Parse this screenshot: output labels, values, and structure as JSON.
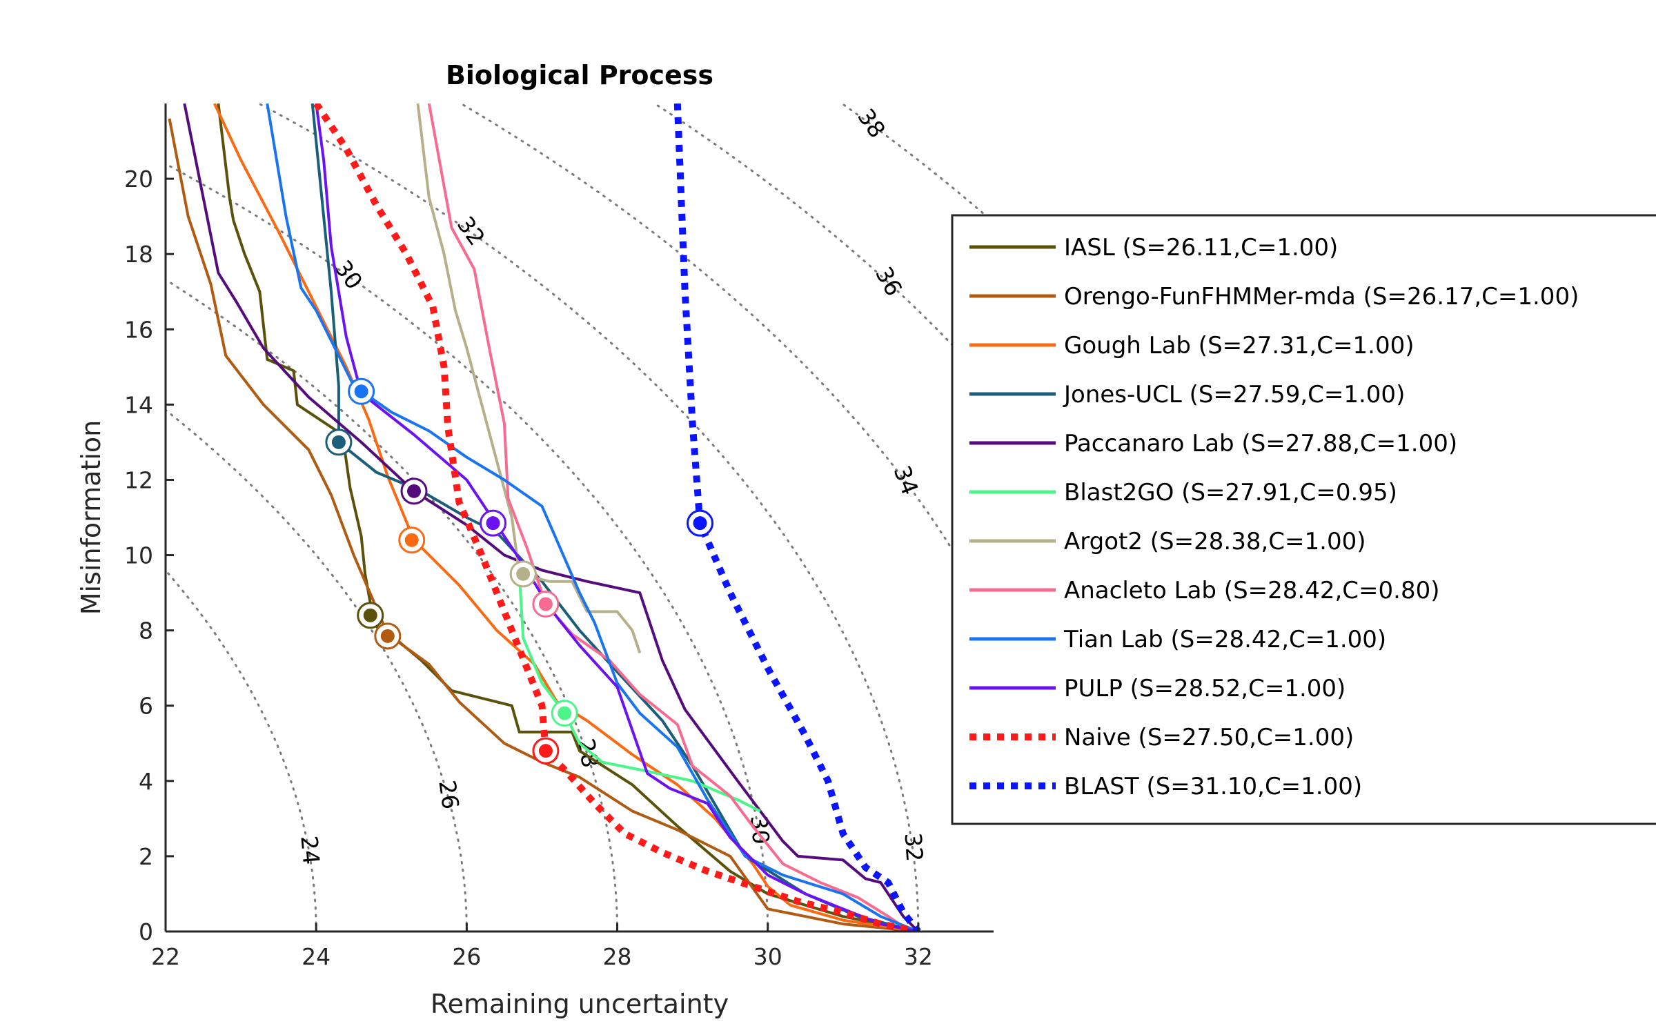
{
  "chart_data": {
    "type": "line",
    "title": "Biological Process",
    "xlabel": "Remaining uncertainty",
    "ylabel": "Misinformation",
    "xlim": [
      22,
      33
    ],
    "ylim": [
      0,
      22
    ],
    "xticks": [
      "22",
      "24",
      "26",
      "28",
      "30",
      "32"
    ],
    "yticks": [
      "0",
      "2",
      "4",
      "6",
      "8",
      "10",
      "12",
      "14",
      "16",
      "18",
      "20"
    ],
    "contours": [
      {
        "level": "24",
        "r": 24,
        "label": "24"
      },
      {
        "level": "26",
        "r": 26,
        "label": "26"
      },
      {
        "level": "28",
        "r": 28,
        "label": "28"
      },
      {
        "level": "30",
        "r": 30,
        "label": "30"
      },
      {
        "level": "32",
        "r": 32,
        "label": "32"
      },
      {
        "level": "34",
        "r": 34,
        "label": "34"
      },
      {
        "level": "36",
        "r": 36,
        "label": "36"
      },
      {
        "level": "38",
        "r": 38,
        "label": "38"
      }
    ],
    "grid": false,
    "legend_position": "right",
    "series": [
      {
        "name": "IASL (S=26.11,C=1.00)",
        "color": "#5a520a",
        "style": "solid",
        "x": [
          22.7,
          22.85,
          22.9,
          23.05,
          23.25,
          23.35,
          23.7,
          23.75,
          24.35,
          24.45,
          24.6,
          24.65,
          24.75,
          24.85,
          25.1,
          25.4,
          25.8,
          26.0,
          26.6,
          26.7,
          26.9,
          27.4,
          27.5,
          28.2,
          28.8,
          29.5,
          30.0,
          31.0,
          32.0
        ],
        "y": [
          22.0,
          19.5,
          18.9,
          18.0,
          17.0,
          15.2,
          14.9,
          14.0,
          13.2,
          11.8,
          10.5,
          9.5,
          8.4,
          7.9,
          7.7,
          7.2,
          6.4,
          6.3,
          6.0,
          5.3,
          5.3,
          5.3,
          4.8,
          3.9,
          2.8,
          1.6,
          1.0,
          0.4,
          0.0
        ],
        "marker": [
          24.72,
          8.4
        ]
      },
      {
        "name": "Orengo-FunFHMMer-mda (S=26.17,C=1.00)",
        "color": "#b05a12",
        "style": "solid",
        "x": [
          22.05,
          22.3,
          22.6,
          22.8,
          23.3,
          23.9,
          24.2,
          24.5,
          24.8,
          24.95,
          25.5,
          25.9,
          26.5,
          27.0,
          27.5,
          28.2,
          28.8,
          29.5,
          30.0,
          30.5,
          31.0,
          31.5,
          32.0
        ],
        "y": [
          21.6,
          19.0,
          17.2,
          15.3,
          14.0,
          12.8,
          11.6,
          10.0,
          8.6,
          7.9,
          7.1,
          6.1,
          5.0,
          4.5,
          4.1,
          3.2,
          2.7,
          2.0,
          0.6,
          0.4,
          0.2,
          0.1,
          0.0
        ],
        "marker": [
          24.95,
          7.85
        ]
      },
      {
        "name": "Gough Lab (S=27.31,C=1.00)",
        "color": "#f96a12",
        "style": "solid",
        "x": [
          22.65,
          23.0,
          23.5,
          23.9,
          24.4,
          24.7,
          24.95,
          25.3,
          25.9,
          26.4,
          26.9,
          27.2,
          27.6,
          28.2,
          28.8,
          29.3,
          29.8,
          30.0,
          30.3,
          31.0,
          32.0
        ],
        "y": [
          22.0,
          20.5,
          18.6,
          17.0,
          15.0,
          13.6,
          12.1,
          10.4,
          9.2,
          8.0,
          7.1,
          6.1,
          5.6,
          4.7,
          3.9,
          3.0,
          1.8,
          1.2,
          0.7,
          0.3,
          0.0
        ],
        "marker": [
          25.27,
          10.4
        ]
      },
      {
        "name": "Jones-UCL (S=27.59,C=1.00)",
        "color": "#1a5e7a",
        "style": "solid",
        "x": [
          23.95,
          24.2,
          24.3,
          24.3,
          24.8,
          25.4,
          26.0,
          26.4,
          27.0,
          27.5,
          28.0,
          28.6,
          29.0,
          29.7,
          30.5,
          31.2,
          32.0
        ],
        "y": [
          22.0,
          17.0,
          14.5,
          13.0,
          12.2,
          11.7,
          11.0,
          10.6,
          9.3,
          8.0,
          6.9,
          5.6,
          4.4,
          2.0,
          1.0,
          0.4,
          0.0
        ],
        "marker": [
          24.3,
          13.0
        ]
      },
      {
        "name": "Paccanaro Lab (S=27.88,C=1.00)",
        "color": "#540b7c",
        "style": "solid",
        "x": [
          22.25,
          22.7,
          22.95,
          23.3,
          23.9,
          24.6,
          25.3,
          26.0,
          26.5,
          27.0,
          27.6,
          28.3,
          28.6,
          28.9,
          29.6,
          30.2,
          30.4,
          31.0,
          31.3,
          31.5,
          31.8,
          32.0
        ],
        "y": [
          22.0,
          17.5,
          16.7,
          15.5,
          14.2,
          13.0,
          11.7,
          10.8,
          10.0,
          9.6,
          9.3,
          9.0,
          7.2,
          5.9,
          4.0,
          2.4,
          2.0,
          1.9,
          1.4,
          1.3,
          0.4,
          0.0
        ],
        "marker": [
          25.3,
          11.7
        ]
      },
      {
        "name": "Blast2GO (S=27.91,C=0.95)",
        "color": "#4cf58a",
        "style": "solid",
        "x": [
          26.7,
          26.75,
          27.0,
          27.3,
          27.5,
          27.8,
          28.3,
          29.0,
          29.6,
          29.9
        ],
        "y": [
          9.5,
          7.8,
          6.6,
          5.8,
          5.0,
          4.5,
          4.3,
          4.0,
          3.5,
          3.2
        ],
        "marker": [
          27.3,
          5.8
        ]
      },
      {
        "name": "Argot2 (S=28.38,C=1.00)",
        "color": "#b5b08a",
        "style": "solid",
        "x": [
          25.35,
          25.5,
          25.7,
          25.85,
          26.0,
          26.2,
          26.4,
          26.6,
          26.7,
          26.9,
          27.1,
          27.4,
          27.6,
          28.0,
          28.2,
          28.3
        ],
        "y": [
          22.0,
          19.5,
          18.0,
          16.5,
          15.5,
          14.0,
          12.5,
          11.0,
          9.5,
          9.4,
          9.3,
          9.3,
          8.5,
          8.5,
          8.0,
          7.4
        ],
        "marker": [
          26.75,
          9.5
        ]
      },
      {
        "name": "Anacleto Lab (S=28.42,C=0.80)",
        "color": "#f76b90",
        "style": "solid",
        "x": [
          25.5,
          25.8,
          26.1,
          26.3,
          26.5,
          26.55,
          26.8,
          27.05,
          27.4,
          27.9,
          28.3,
          28.8,
          29.0,
          29.5,
          29.8,
          30.2,
          30.7,
          31.2,
          31.6,
          31.9
        ],
        "y": [
          22.0,
          18.7,
          17.6,
          15.5,
          13.5,
          11.5,
          10.2,
          8.7,
          7.9,
          7.2,
          6.3,
          5.5,
          4.4,
          3.6,
          2.8,
          1.8,
          1.3,
          0.9,
          0.4,
          0.0
        ],
        "marker": [
          27.05,
          8.7
        ]
      },
      {
        "name": "Tian Lab (S=28.42,C=1.00)",
        "color": "#1a74f0",
        "style": "solid",
        "x": [
          23.35,
          23.6,
          23.8,
          24.0,
          24.5,
          25.0,
          25.5,
          26.0,
          26.5,
          27.0,
          27.5,
          27.7,
          28.0,
          28.3,
          28.8,
          29.2,
          29.7,
          30.2,
          31.0,
          31.5,
          32.0
        ],
        "y": [
          22.0,
          19.0,
          17.1,
          16.5,
          14.5,
          13.8,
          13.3,
          12.6,
          12.0,
          11.3,
          9.0,
          8.2,
          6.6,
          5.8,
          4.9,
          3.5,
          2.0,
          1.5,
          1.0,
          0.4,
          0.0
        ],
        "marker": [
          24.6,
          14.35
        ]
      },
      {
        "name": "PULP (S=28.52,C=1.00)",
        "color": "#6a12f0",
        "style": "solid",
        "x": [
          24.0,
          24.1,
          24.2,
          24.4,
          24.6,
          25.3,
          26.0,
          26.4,
          26.8,
          27.1,
          27.5,
          28.0,
          28.4,
          28.7,
          29.2,
          29.5,
          30.0,
          30.5,
          31.0,
          31.5,
          32.0
        ],
        "y": [
          22.0,
          20.5,
          18.2,
          15.8,
          14.3,
          13.2,
          12.0,
          10.8,
          9.6,
          8.6,
          7.6,
          6.5,
          4.2,
          3.8,
          3.4,
          2.5,
          1.5,
          1.0,
          0.6,
          0.2,
          0.0
        ],
        "marker": [
          26.35,
          10.85
        ]
      },
      {
        "name": "Naive (S=27.50,C=1.00)",
        "color": "#ff1a1a",
        "style": "dotted",
        "x": [
          24.0,
          24.4,
          24.8,
          25.2,
          25.55,
          25.7,
          25.75,
          25.9,
          26.2,
          26.6,
          27.0,
          27.05,
          27.3,
          27.7,
          28.1,
          28.6,
          29.2,
          29.8,
          30.4,
          31.0,
          31.5,
          32.0
        ],
        "y": [
          22.0,
          20.8,
          19.3,
          18.0,
          16.6,
          15.0,
          13.4,
          11.4,
          10.0,
          8.0,
          6.0,
          4.8,
          4.3,
          3.4,
          2.6,
          2.1,
          1.6,
          1.2,
          0.8,
          0.5,
          0.2,
          0.0
        ],
        "marker": [
          27.05,
          4.8
        ]
      },
      {
        "name": "BLAST (S=31.10,C=1.00)",
        "color": "#0a14ff",
        "style": "dotted",
        "x": [
          28.8,
          28.9,
          29.0,
          29.1,
          29.5,
          30.0,
          30.5,
          30.8,
          31.0,
          31.3,
          31.6,
          31.8,
          32.0
        ],
        "y": [
          22.0,
          17.0,
          13.5,
          10.85,
          9.0,
          7.0,
          5.2,
          4.0,
          2.6,
          1.7,
          1.3,
          0.5,
          0.0
        ],
        "marker": [
          29.1,
          10.85
        ]
      }
    ]
  }
}
